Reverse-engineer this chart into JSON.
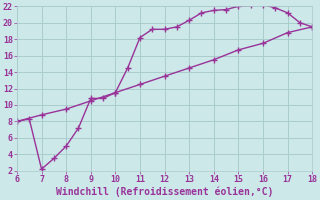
{
  "xlabel": "Windchill (Refroidissement éolien,°C)",
  "line1_x": [
    6,
    6.5,
    7,
    7.5,
    8,
    8.5,
    9,
    9.5,
    10,
    10.5,
    11,
    11.5,
    12,
    12.5,
    13,
    13.5,
    14,
    14.5,
    15,
    15.5,
    16,
    16.5,
    17,
    17.5,
    18
  ],
  "line1_y": [
    8.0,
    8.3,
    2.2,
    3.5,
    5.0,
    7.2,
    10.8,
    10.8,
    11.5,
    14.5,
    18.2,
    19.2,
    19.2,
    19.5,
    20.3,
    21.2,
    21.5,
    21.6,
    22.0,
    22.1,
    22.2,
    21.8,
    21.2,
    20.0,
    19.5
  ],
  "line2_x": [
    6,
    7,
    8,
    9,
    10,
    11,
    12,
    13,
    14,
    15,
    16,
    17,
    18
  ],
  "line2_y": [
    8.0,
    8.8,
    9.5,
    10.5,
    11.5,
    12.5,
    13.5,
    14.5,
    15.5,
    16.7,
    17.5,
    18.8,
    19.5
  ],
  "line_color": "#993399",
  "bg_color": "#cce8e8",
  "grid_color": "#aacccc",
  "xlim": [
    6,
    18
  ],
  "ylim": [
    2,
    22
  ],
  "xticks": [
    6,
    7,
    8,
    9,
    10,
    11,
    12,
    13,
    14,
    15,
    16,
    17,
    18
  ],
  "yticks": [
    2,
    4,
    6,
    8,
    10,
    12,
    14,
    16,
    18,
    20,
    22
  ],
  "marker": "+",
  "markersize": 4,
  "linewidth": 1.0,
  "font_color": "#993399",
  "xlabel_fontsize": 7,
  "tick_fontsize": 6
}
